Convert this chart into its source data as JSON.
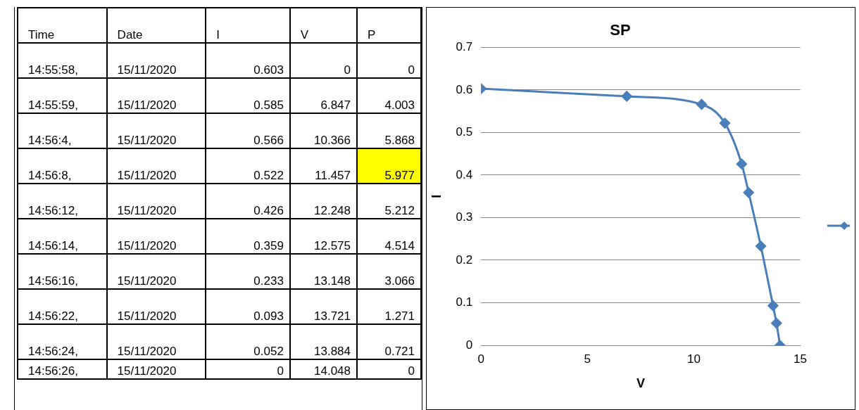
{
  "chart_data": [
    {
      "type": "other",
      "annotations": [
        "Time",
        "Date",
        "I",
        "V",
        "P",
        "14:55:58,",
        "15/11/2020",
        "0.603",
        "0",
        "0",
        "14:55:59,",
        "15/11/2020",
        "0.585",
        "6.847",
        "4.003",
        "14:56:4,",
        "15/11/2020",
        "0.566",
        "10.366",
        "5.868",
        "14:56:8,",
        "15/11/2020",
        "0.522",
        "11.457",
        "5.977",
        "14:56:12,",
        "15/11/2020",
        "0.426",
        "12.248",
        "5.212",
        "14:56:14,",
        "15/11/2020",
        "0.359",
        "12.575",
        "4.514",
        "14:56:16,",
        "15/11/2020",
        "0.233",
        "13.148",
        "3.066",
        "14:56:22,",
        "15/11/2020",
        "0.093",
        "13.721",
        "1.271",
        "14:56:24,",
        "15/11/2020",
        "0.052",
        "13.884",
        "0.721",
        "14:56:26,",
        "15/11/2020",
        "0",
        "14.048",
        "0"
      ],
      "colors": [
        "#ffffff",
        "#ffffff",
        "#ffffff",
        "#ffffff",
        "#ffffff",
        "#ffffff",
        "#ffffff",
        "#ffffff",
        "#ffffff",
        "#ffffff",
        "#ffffff",
        "#ffffff",
        "#ffffff",
        "#ffffff",
        "#ffffff",
        "#ffffff",
        "#ffffff",
        "#ffffff",
        "#ffffff",
        "#ffffff",
        "#ffffff",
        "#ffffff",
        "#ffffff",
        "#ffffff",
        "#ffff00",
        "#ffffff",
        "#ffffff",
        "#ffffff",
        "#ffffff",
        "#ffffff",
        "#ffffff",
        "#ffffff",
        "#ffffff",
        "#ffffff",
        "#ffffff",
        "#ffffff",
        "#ffffff",
        "#ffffff",
        "#ffffff",
        "#ffffff",
        "#ffffff",
        "#ffffff",
        "#ffffff",
        "#ffffff",
        "#ffffff",
        "#ffffff",
        "#ffffff",
        "#ffffff",
        "#ffffff",
        "#ffffff",
        "#ffffff",
        "#ffffff",
        "#ffffff",
        "#ffffff",
        "#ffffff"
      ]
    },
    {
      "type": "line",
      "title": "SP",
      "xlabel": "V",
      "ylabel": "I",
      "x": [
        0,
        6.847,
        10.366,
        11.457,
        12.248,
        12.575,
        13.148,
        13.721,
        13.884,
        14.048
      ],
      "series": [
        {
          "color": "#4a7ebb",
          "values": [
            0.603,
            0.585,
            0.566,
            0.522,
            0.426,
            0.359,
            0.233,
            0.093,
            0.052,
            0
          ]
        }
      ],
      "xlim": [
        0,
        15
      ],
      "xticks": [
        0,
        5,
        10,
        15
      ],
      "ylim": [
        0,
        0.7
      ],
      "yticks": [
        0,
        0.1,
        0.2,
        0.3,
        0.4,
        0.5,
        0.6,
        0.7
      ],
      "grid": "y",
      "marker": "diamond",
      "line_style": "solid"
    }
  ]
}
